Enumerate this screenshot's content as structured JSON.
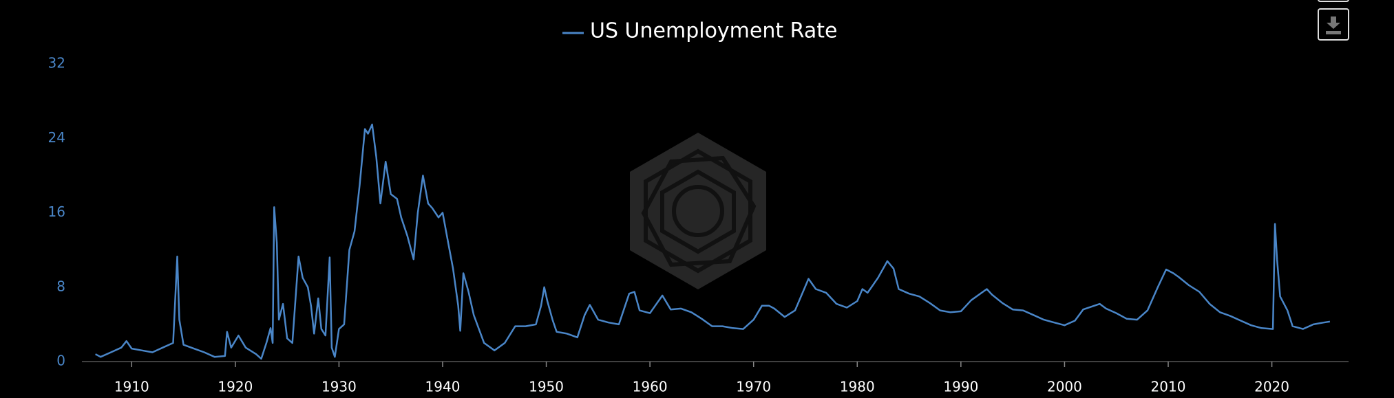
{
  "chart_data": {
    "type": "line",
    "series": [
      {
        "name": "US Unemployment Rate",
        "color": "#4a86c8",
        "values": [
          0.8,
          0.5,
          1.0,
          1.5,
          2.2,
          1.4,
          1.2,
          1.0,
          1.5,
          2.0,
          11.3,
          4.5,
          1.8,
          1.4,
          1.0,
          0.5,
          0.6,
          3.2,
          1.5,
          2.8,
          1.5,
          0.8,
          0.3,
          2.0,
          3.6,
          2.0,
          16.6,
          12.8,
          4.5,
          6.2,
          2.5,
          2.0,
          11.3,
          9.0,
          8.0,
          6.0,
          3.0,
          6.8,
          3.5,
          2.8,
          11.2,
          1.5,
          0.5,
          3.5,
          4.0,
          12.0,
          14.0,
          19.0,
          25.0,
          24.5,
          25.5,
          22.0,
          17.0,
          21.5,
          18.0,
          17.5,
          15.5,
          13.5,
          11.0,
          16.0,
          20.0,
          17.0,
          16.5,
          15.5,
          16.0,
          13.0,
          10.0,
          6.0,
          3.3,
          9.5,
          7.5,
          5.0,
          2.0,
          1.2,
          2.0,
          3.8,
          3.8,
          4.0,
          6.0,
          8.0,
          6.5,
          4.5,
          3.2,
          3.0,
          2.6,
          5.0,
          6.1,
          4.5,
          4.2,
          4.0,
          7.3,
          7.5,
          5.5,
          5.2,
          6.0,
          7.1,
          5.6,
          5.7,
          5.3,
          4.6,
          3.8,
          3.8,
          3.6,
          3.5,
          4.5,
          6.0,
          6.0,
          5.7,
          4.8,
          5.5,
          8.9,
          7.8,
          7.4,
          6.2,
          5.8,
          6.5,
          7.8,
          7.4,
          9.0,
          10.8,
          10.0,
          7.8,
          7.3,
          7.0,
          6.3,
          5.5,
          5.3,
          5.4,
          6.6,
          7.8,
          7.2,
          6.3,
          5.6,
          5.5,
          5.0,
          4.5,
          4.2,
          3.9,
          4.4,
          5.6,
          6.2,
          5.7,
          5.2,
          4.6,
          4.5,
          5.5,
          8.0,
          9.9,
          9.5,
          9.1,
          8.2,
          7.5,
          6.2,
          5.3,
          4.9,
          4.4,
          3.9,
          3.6,
          3.5,
          14.8,
          11.0,
          7.0,
          5.5,
          3.8,
          3.5,
          4.0,
          4.2,
          4.3
        ]
      }
    ],
    "x": [
      1906.5,
      1907,
      1908,
      1909,
      1909.5,
      1910,
      1911,
      1912,
      1913,
      1914,
      1914.4,
      1914.6,
      1915,
      1916,
      1917,
      1918,
      1919,
      1919.2,
      1919.6,
      1920.3,
      1921,
      1922,
      1922.5,
      1923,
      1923.4,
      1923.6,
      1923.75,
      1924,
      1924.2,
      1924.6,
      1925,
      1925.5,
      1926.1,
      1926.5,
      1927,
      1927.3,
      1927.6,
      1928,
      1928.3,
      1928.7,
      1929.1,
      1929.3,
      1929.6,
      1930,
      1930.5,
      1931,
      1931.5,
      1932,
      1932.5,
      1932.8,
      1933.2,
      1933.6,
      1934,
      1934.5,
      1935,
      1935.6,
      1936,
      1936.6,
      1937.2,
      1937.6,
      1938.1,
      1938.6,
      1939,
      1939.6,
      1940,
      1940.5,
      1941,
      1941.5,
      1941.7,
      1942,
      1942.5,
      1943,
      1944,
      1945,
      1946,
      1947,
      1948,
      1949,
      1949.5,
      1949.8,
      1950.1,
      1950.6,
      1951,
      1952,
      1953,
      1953.7,
      1954.2,
      1955,
      1956,
      1957,
      1958,
      1958.5,
      1959,
      1960,
      1960.5,
      1961.2,
      1962,
      1963,
      1964,
      1965,
      1966,
      1967,
      1968,
      1969,
      1970,
      1970.8,
      1971.5,
      1972,
      1973,
      1974,
      1975.3,
      1976,
      1977,
      1978,
      1979,
      1980,
      1980.5,
      1981,
      1982,
      1982.9,
      1983.5,
      1984,
      1985,
      1986,
      1987,
      1988,
      1989,
      1990,
      1991,
      1992.5,
      1993,
      1994,
      1995,
      1996,
      1997,
      1998,
      1999,
      2000,
      2001,
      2001.8,
      2003.4,
      2004,
      2005,
      2006,
      2007,
      2008,
      2009,
      2009.8,
      2010.5,
      2011,
      2012,
      2013,
      2014,
      2015,
      2016,
      2017,
      2018,
      2019,
      2020.1,
      2020.3,
      2020.5,
      2020.8,
      2021.5,
      2022,
      2023,
      2024,
      2025,
      2025.6
    ],
    "xlim": [
      1905.2,
      2027.4
    ],
    "xticks": [
      1910,
      1920,
      1930,
      1940,
      1950,
      1960,
      1970,
      1980,
      1990,
      2000,
      2010,
      2020
    ],
    "ylim": [
      0,
      32
    ],
    "yticks": [
      0,
      8,
      16,
      24,
      32
    ],
    "grid": false,
    "legend": "top"
  }
}
